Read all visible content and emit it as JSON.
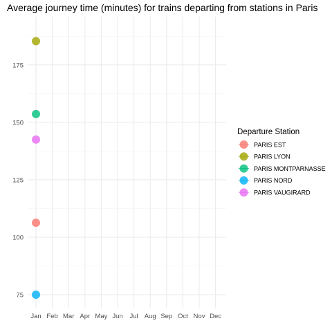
{
  "chart_data": {
    "type": "scatter",
    "title": "Average journey time (minutes) for trains departing from stations in Paris",
    "xlabel": "",
    "ylabel": "",
    "x_categories": [
      "Jan",
      "Feb",
      "Mar",
      "Apr",
      "May",
      "Jun",
      "Jul",
      "Aug",
      "Sep",
      "Oct",
      "Nov",
      "Dec"
    ],
    "y_ticks": [
      75,
      100,
      125,
      150,
      175
    ],
    "ylim": [
      69,
      196
    ],
    "grid": true,
    "legend": {
      "title": "Departure Station",
      "placement": "right"
    },
    "series": [
      {
        "name": "PARIS EST",
        "color": "#F8766D",
        "points": [
          {
            "x": "Jan",
            "y": 106.3
          }
        ]
      },
      {
        "name": "PARIS LYON",
        "color": "#A3A500",
        "points": [
          {
            "x": "Jan",
            "y": 185.3
          }
        ]
      },
      {
        "name": "PARIS MONTPARNASSE",
        "color": "#00BF7D",
        "points": [
          {
            "x": "Jan",
            "y": 153.6
          }
        ]
      },
      {
        "name": "PARIS NORD",
        "color": "#00B0F6",
        "points": [
          {
            "x": "Jan",
            "y": 75.0
          }
        ]
      },
      {
        "name": "PARIS VAUGIRARD",
        "color": "#E76BF3",
        "points": [
          {
            "x": "Jan",
            "y": 142.5
          }
        ]
      }
    ]
  }
}
